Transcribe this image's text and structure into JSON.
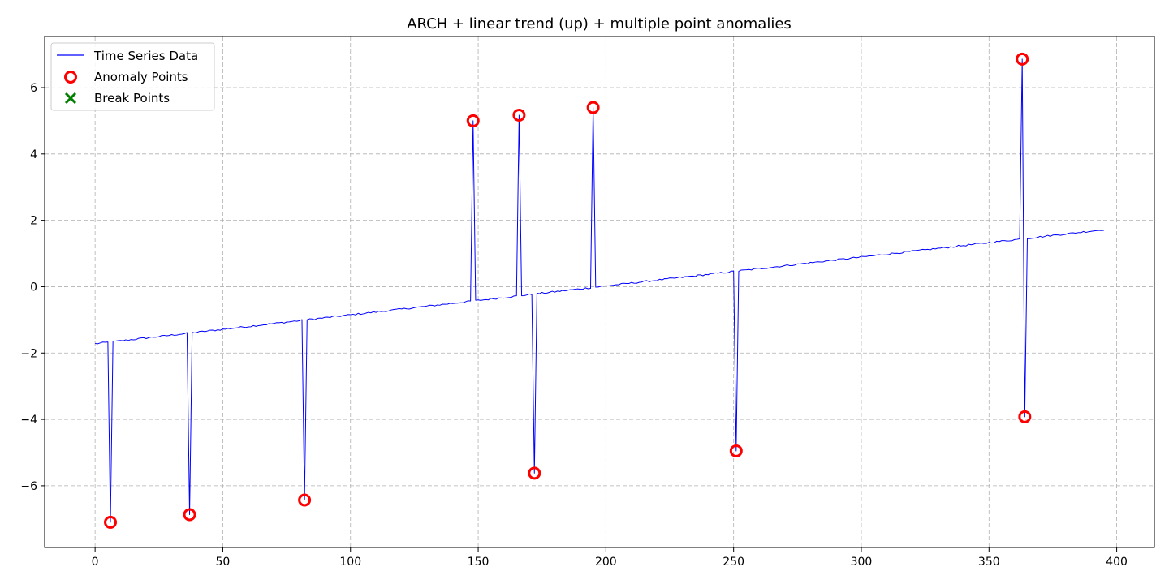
{
  "chart_data": {
    "type": "line",
    "title": "ARCH + linear trend (up) + multiple point anomalies",
    "xlabel": "",
    "ylabel": "",
    "xlim": [
      -19.75,
      414.75
    ],
    "ylim": [
      -7.86,
      7.54
    ],
    "xticks": [
      0,
      50,
      100,
      150,
      200,
      250,
      300,
      350,
      400
    ],
    "yticks": [
      -6,
      -4,
      -2,
      0,
      2,
      4,
      6
    ],
    "grid": true,
    "legend_position": "upper left",
    "series": [
      {
        "name": "Time Series Data",
        "color": "#0000ff",
        "x_start": 0,
        "x_step": 1,
        "trend": {
          "start": -1.72,
          "end": 1.72,
          "n": 396
        },
        "noise": 0.025
      }
    ],
    "anomalies": {
      "name": "Anomaly Points",
      "color": "#ff0000",
      "points": [
        {
          "x": 6,
          "y": -7.1
        },
        {
          "x": 37,
          "y": -6.87
        },
        {
          "x": 82,
          "y": -6.43
        },
        {
          "x": 148,
          "y": 5.0
        },
        {
          "x": 166,
          "y": 5.17
        },
        {
          "x": 172,
          "y": -5.62
        },
        {
          "x": 195,
          "y": 5.4
        },
        {
          "x": 251,
          "y": -4.95
        },
        {
          "x": 363,
          "y": 6.86
        },
        {
          "x": 364,
          "y": -3.92
        }
      ]
    },
    "break_points": {
      "name": "Break Points",
      "color": "#008000",
      "points": []
    }
  }
}
